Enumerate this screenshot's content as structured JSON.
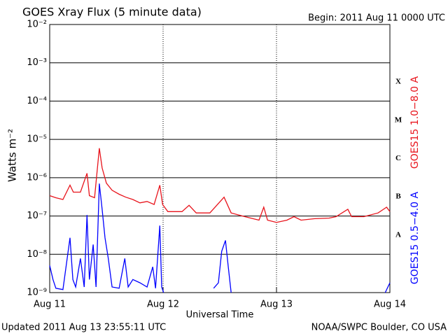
{
  "chart_data": {
    "type": "line",
    "title": "GOES Xray Flux (5 minute data)",
    "subtitle": "Begin:  2011 Aug 11 0000 UTC",
    "xlabel": "Universal Time",
    "ylabel": "Watts m⁻²",
    "footer_left": "Updated 2011 Aug 13 23:55:11 UTC",
    "footer_right": "NOAA/SWPC Boulder, CO USA",
    "flare_classes": [
      "X",
      "M",
      "C",
      "B",
      "A"
    ],
    "log_scale": true,
    "grid": true,
    "xlim": [
      0,
      72
    ],
    "xticks": [
      {
        "value": 0,
        "label": "Aug 11"
      },
      {
        "value": 24,
        "label": "Aug 12"
      },
      {
        "value": 48,
        "label": "Aug 13"
      },
      {
        "value": 72,
        "label": "Aug 14"
      }
    ],
    "ylim": [
      1e-09,
      0.01
    ],
    "yticks": [
      {
        "value": 1e-09,
        "label": "10⁻⁹"
      },
      {
        "value": 1e-08,
        "label": "10⁻⁸"
      },
      {
        "value": 1e-07,
        "label": "10⁻⁷"
      },
      {
        "value": 1e-06,
        "label": "10⁻⁶"
      },
      {
        "value": 1e-05,
        "label": "10⁻⁵"
      },
      {
        "value": 0.0001,
        "label": "10⁻⁴"
      },
      {
        "value": 0.001,
        "label": "10⁻³"
      },
      {
        "value": 0.01,
        "label": "10⁻²"
      }
    ],
    "series": [
      {
        "name": "GOES15 1.0−8.0 A",
        "color": "#e8141c",
        "x": [
          0,
          1.3,
          2.8,
          4.3,
          5,
          6.5,
          7.9,
          8.4,
          9.5,
          10.5,
          11.1,
          12,
          13.2,
          14.7,
          16.1,
          17.6,
          19.1,
          20.6,
          22.1,
          23.3,
          23.9,
          25,
          28,
          29.5,
          31,
          33.9,
          36.9,
          38.4,
          41.3,
          44.3,
          45.3,
          46.1,
          48,
          50.2,
          51.7,
          53.2,
          56.1,
          59.1,
          60.6,
          63.1,
          63.9,
          66.5,
          69.5,
          71.3,
          72
        ],
        "values": [
          3.4e-07,
          3e-07,
          2.7e-07,
          6.4e-07,
          4.2e-07,
          4.2e-07,
          1.3e-06,
          3.4e-07,
          3e-07,
          5.9e-06,
          1.8e-06,
          7.2e-07,
          4.7e-07,
          3.7e-07,
          3.1e-07,
          2.7e-07,
          2.2e-07,
          2.4e-07,
          2e-07,
          6.4e-07,
          2e-07,
          1.3e-07,
          1.3e-07,
          1.9e-07,
          1.2e-07,
          1.2e-07,
          3.1e-07,
          1.2e-07,
          9.6e-08,
          7.8e-08,
          1.7e-07,
          7.8e-08,
          6.8e-08,
          7.8e-08,
          9.6e-08,
          7.8e-08,
          8.5e-08,
          8.8e-08,
          9.6e-08,
          1.5e-07,
          9.6e-08,
          9.6e-08,
          1.2e-07,
          1.7e-07,
          1.3e-07
        ]
      },
      {
        "name": "GOES15 0.5−4.0 A",
        "color": "#0000ff",
        "x": [
          0,
          0.7,
          1.3,
          2.8,
          4.3,
          4.9,
          5.5,
          6.5,
          7.3,
          7.9,
          8.4,
          9.2,
          9.8,
          10.5,
          11.1,
          11.7,
          12.4,
          13.2,
          14.7,
          15.9,
          16.6,
          17.6,
          19.1,
          20.6,
          21.8,
          22.4,
          23.3,
          23.7,
          24.1,
          30,
          34.7,
          35.7,
          36.4,
          37.2,
          37.8,
          38.4,
          60,
          71,
          72
        ],
        "values": [
          5.1e-09,
          2.2e-09,
          1.3e-09,
          1.2e-09,
          2.7e-08,
          2.2e-09,
          1.4e-09,
          7.8e-09,
          1.4e-09,
          1.06e-07,
          2.2e-09,
          1.8e-08,
          1.4e-09,
          7e-07,
          1.5e-07,
          2.7e-08,
          7.8e-09,
          1.4e-09,
          1.3e-09,
          7.8e-09,
          1.4e-09,
          2.2e-09,
          1.8e-09,
          1.4e-09,
          4.7e-09,
          1.3e-09,
          5.6e-08,
          1.4e-09,
          1e-09,
          null,
          1.3e-09,
          1.8e-09,
          1.2e-08,
          2.3e-08,
          4.7e-09,
          1e-09,
          null,
          1e-09,
          1.8e-09
        ]
      }
    ]
  }
}
